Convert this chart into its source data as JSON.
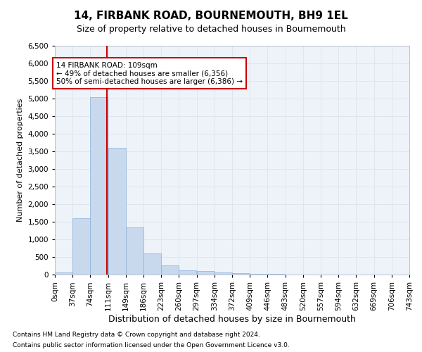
{
  "title": "14, FIRBANK ROAD, BOURNEMOUTH, BH9 1EL",
  "subtitle": "Size of property relative to detached houses in Bournemouth",
  "xlabel": "Distribution of detached houses by size in Bournemouth",
  "ylabel": "Number of detached properties",
  "footnote1": "Contains HM Land Registry data © Crown copyright and database right 2024.",
  "footnote2": "Contains public sector information licensed under the Open Government Licence v3.0.",
  "annotation_line1": "14 FIRBANK ROAD: 109sqm",
  "annotation_line2": "← 49% of detached houses are smaller (6,356)",
  "annotation_line3": "50% of semi-detached houses are larger (6,386) →",
  "bar_color": "#c8d9ee",
  "bar_edge_color": "#8ab0d8",
  "vline_color": "#cc0000",
  "vline_x": 109,
  "bins": [
    0,
    37,
    74,
    111,
    148,
    185,
    222,
    259,
    296,
    333,
    370,
    407,
    444,
    481,
    518,
    555,
    592,
    629,
    666,
    703,
    740
  ],
  "counts": [
    55,
    1600,
    5050,
    3600,
    1350,
    600,
    270,
    120,
    95,
    65,
    45,
    28,
    25,
    7,
    4,
    2,
    2,
    1,
    1,
    0
  ],
  "ylim": [
    0,
    6500
  ],
  "yticks": [
    0,
    500,
    1000,
    1500,
    2000,
    2500,
    3000,
    3500,
    4000,
    4500,
    5000,
    5500,
    6000,
    6500
  ],
  "xtick_labels": [
    "0sqm",
    "37sqm",
    "74sqm",
    "111sqm",
    "149sqm",
    "186sqm",
    "223sqm",
    "260sqm",
    "297sqm",
    "334sqm",
    "372sqm",
    "409sqm",
    "446sqm",
    "483sqm",
    "520sqm",
    "557sqm",
    "594sqm",
    "632sqm",
    "669sqm",
    "706sqm",
    "743sqm"
  ],
  "grid_color": "#dce6f1",
  "background_color": "#eef3fa",
  "annotation_box_color": "#ffffff",
  "annotation_box_edge": "#cc0000",
  "fig_width": 6.0,
  "fig_height": 5.0,
  "dpi": 100
}
